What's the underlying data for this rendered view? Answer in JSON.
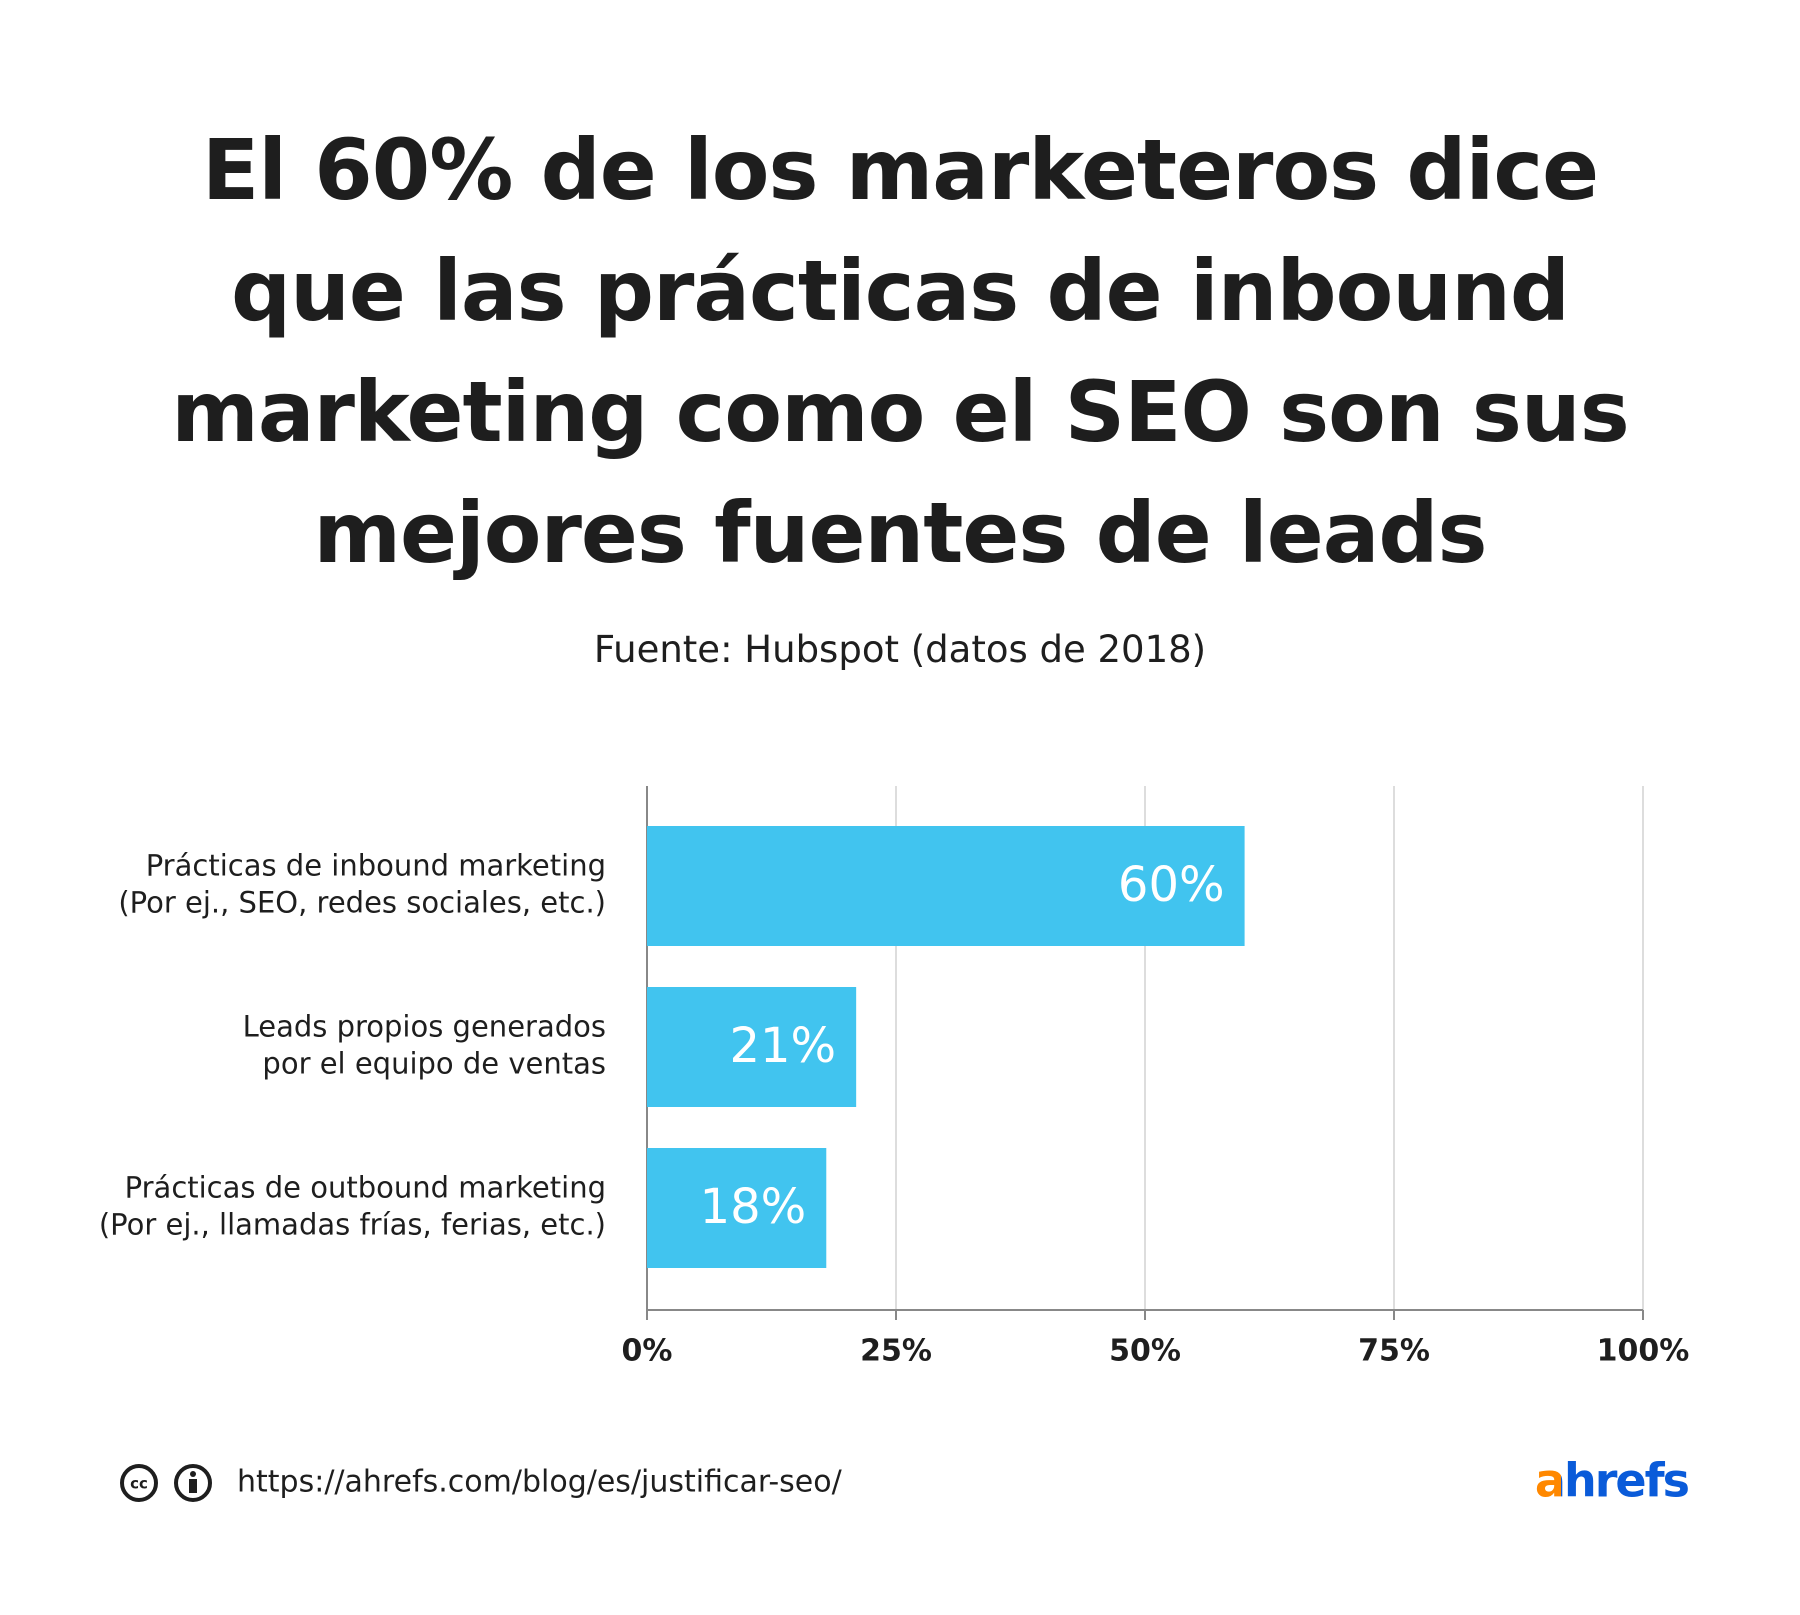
{
  "chart_data": {
    "type": "bar",
    "orientation": "horizontal",
    "title": "El 60% de los marketeros dice que las prácticas de inbound marketing como el SEO son sus mejores fuentes de leads",
    "subtitle": "Fuente: Hubspot (datos de 2018)",
    "categories": [
      [
        "Prácticas de inbound marketing",
        "(Por ej., SEO, redes sociales, etc.)"
      ],
      [
        "Leads propios generados",
        "por el equipo de ventas"
      ],
      [
        "Prácticas de outbound marketing",
        "(Por ej., llamadas frías, ferias, etc.)"
      ]
    ],
    "values": [
      60,
      21,
      18
    ],
    "value_labels": [
      "60%",
      "21%",
      "18%"
    ],
    "color": "#41c4ef",
    "xlim": [
      0,
      100
    ],
    "xticks": [
      {
        "value": 0,
        "label": "0%"
      },
      {
        "value": 25,
        "label": "25%"
      },
      {
        "value": 50,
        "label": "50%"
      },
      {
        "value": 75,
        "label": "75%"
      },
      {
        "value": 100,
        "label": "100%"
      }
    ],
    "grid": true
  },
  "footer": {
    "url": "https://ahrefs.com/blog/es/justificar-seo/",
    "logo": "ahrefs"
  }
}
